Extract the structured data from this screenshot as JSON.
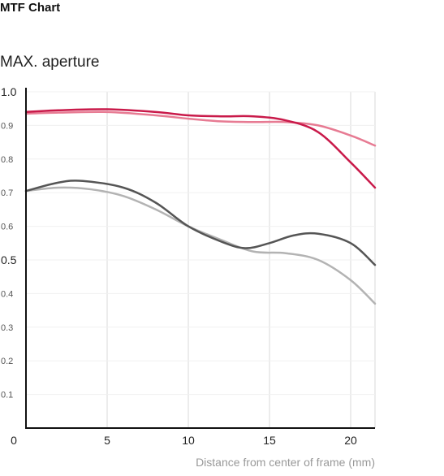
{
  "page_title": "MTF Chart",
  "chart_data": {
    "type": "line",
    "title": "MAX. aperture",
    "xlabel": "Distance from center of frame (mm)",
    "ylabel": "",
    "xlim": [
      0,
      21.5
    ],
    "ylim": [
      0,
      1.0
    ],
    "grid": true,
    "x_ticks": [
      0,
      5,
      10,
      15,
      20
    ],
    "x_tick_labels": [
      "0",
      "5",
      "10",
      "15",
      "20"
    ],
    "y_ticks": [
      0.1,
      0.2,
      0.3,
      0.4,
      0.5,
      0.6,
      0.7,
      0.8,
      0.9,
      1.0
    ],
    "y_tick_labels": [
      "0.1",
      "0.2",
      "0.3",
      "0.4",
      "0.5",
      "0.6",
      "0.7",
      "0.8",
      "0.9",
      "1.0"
    ],
    "y_ticks_emphasized": [
      0.5,
      1.0
    ],
    "series": [
      {
        "color": "#e77b93",
        "width": 2.5,
        "x": [
          0,
          2,
          5,
          8,
          10,
          12,
          14,
          16,
          18,
          20,
          21.5
        ],
        "y": [
          0.935,
          0.938,
          0.94,
          0.93,
          0.92,
          0.912,
          0.91,
          0.91,
          0.9,
          0.87,
          0.84
        ]
      },
      {
        "color": "#c91a4a",
        "width": 2.5,
        "x": [
          0,
          2,
          5,
          8,
          10,
          12,
          14,
          16,
          18,
          20,
          21.5
        ],
        "y": [
          0.94,
          0.945,
          0.948,
          0.94,
          0.93,
          0.927,
          0.927,
          0.915,
          0.88,
          0.79,
          0.715
        ]
      },
      {
        "color": "#b3b3b3",
        "width": 2.5,
        "x": [
          0,
          2,
          4,
          6,
          8,
          10,
          12,
          14,
          16,
          18,
          20,
          21.5
        ],
        "y": [
          0.705,
          0.715,
          0.71,
          0.69,
          0.65,
          0.6,
          0.56,
          0.525,
          0.52,
          0.5,
          0.44,
          0.37
        ]
      },
      {
        "color": "#555555",
        "width": 2.5,
        "x": [
          0,
          2,
          3.5,
          6,
          8,
          10,
          12,
          13.5,
          15,
          16.5,
          18,
          20,
          21.5
        ],
        "y": [
          0.705,
          0.73,
          0.735,
          0.715,
          0.67,
          0.6,
          0.555,
          0.535,
          0.55,
          0.573,
          0.578,
          0.55,
          0.485
        ]
      }
    ]
  }
}
